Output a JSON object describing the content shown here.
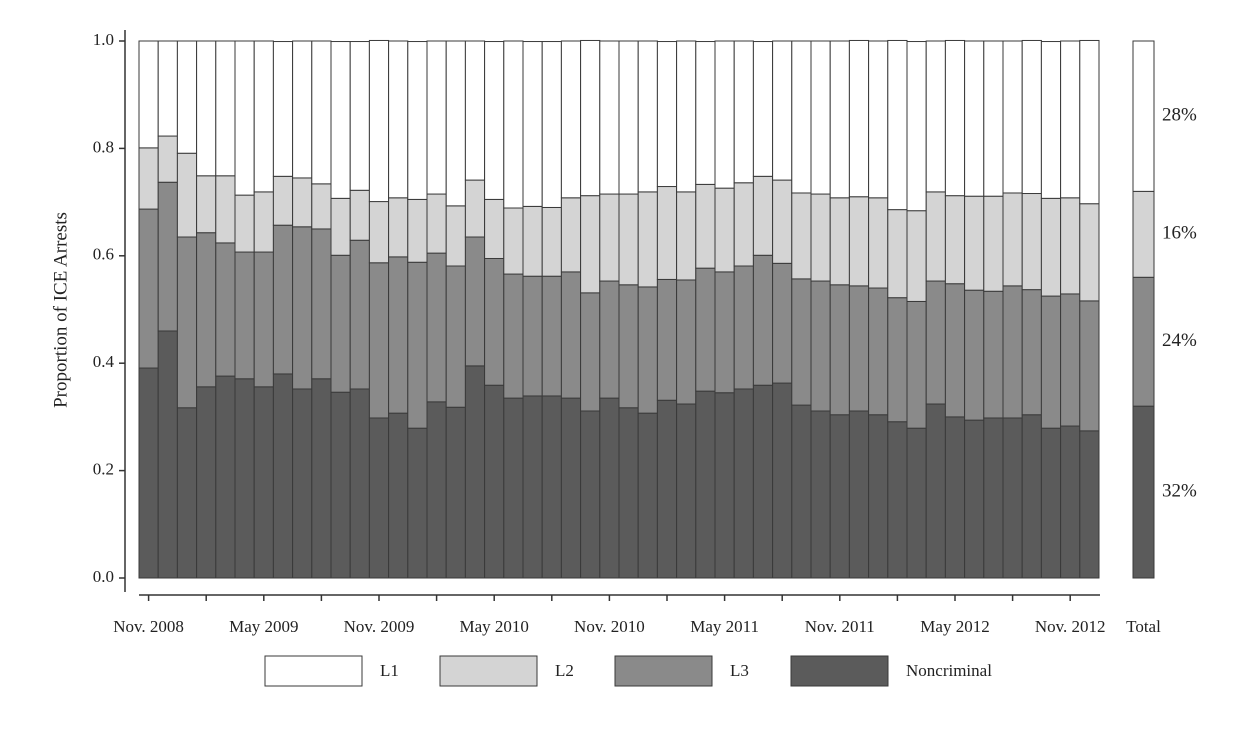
{
  "chart_data": {
    "type": "stacked_bar",
    "y_label": "Proportion of ICE Arrests",
    "categories": [
      "Nov. 2008",
      null,
      null,
      null,
      null,
      null,
      "May 2009",
      null,
      null,
      null,
      null,
      null,
      "Nov. 2009",
      null,
      null,
      null,
      null,
      null,
      "May 2010",
      null,
      null,
      null,
      null,
      null,
      "Nov. 2010",
      null,
      null,
      null,
      null,
      null,
      "May 2011",
      null,
      null,
      null,
      null,
      null,
      "Nov. 2011",
      null,
      null,
      null,
      null,
      null,
      "May 2012",
      null,
      null,
      null,
      null,
      null,
      "Nov. 2012",
      null
    ],
    "series": [
      {
        "name": "L1",
        "color": "#ffffff",
        "values": [
          0.199,
          0.177,
          0.209,
          0.251,
          0.251,
          0.287,
          0.281,
          0.251,
          0.255,
          0.266,
          0.292,
          0.277,
          0.3,
          0.292,
          0.294,
          0.285,
          0.307,
          0.259,
          0.294,
          0.311,
          0.307,
          0.309,
          0.292,
          0.289,
          0.285,
          0.285,
          0.281,
          0.27,
          0.281,
          0.266,
          0.274,
          0.264,
          0.251,
          0.259,
          0.283,
          0.285,
          0.292,
          0.291,
          0.292,
          0.315,
          0.315,
          0.281,
          0.289,
          0.289,
          0.289,
          0.283,
          0.285,
          0.292,
          0.292,
          0.304
        ]
      },
      {
        "name": "L2",
        "color": "#d4d4d4",
        "values": [
          0.114,
          0.086,
          0.156,
          0.106,
          0.125,
          0.106,
          0.112,
          0.091,
          0.091,
          0.084,
          0.106,
          0.093,
          0.114,
          0.11,
          0.117,
          0.11,
          0.112,
          0.106,
          0.11,
          0.123,
          0.13,
          0.128,
          0.138,
          0.181,
          0.162,
          0.169,
          0.177,
          0.173,
          0.164,
          0.156,
          0.156,
          0.155,
          0.147,
          0.155,
          0.16,
          0.162,
          0.162,
          0.166,
          0.168,
          0.164,
          0.169,
          0.166,
          0.164,
          0.175,
          0.177,
          0.173,
          0.179,
          0.182,
          0.179,
          0.181
        ]
      },
      {
        "name": "L3",
        "color": "#8a8a8a",
        "values": [
          0.296,
          0.277,
          0.318,
          0.287,
          0.248,
          0.236,
          0.251,
          0.277,
          0.302,
          0.279,
          0.255,
          0.277,
          0.289,
          0.291,
          0.309,
          0.277,
          0.263,
          0.24,
          0.236,
          0.231,
          0.223,
          0.223,
          0.235,
          0.22,
          0.218,
          0.229,
          0.235,
          0.225,
          0.231,
          0.229,
          0.225,
          0.229,
          0.242,
          0.223,
          0.235,
          0.242,
          0.242,
          0.233,
          0.236,
          0.231,
          0.236,
          0.229,
          0.248,
          0.242,
          0.236,
          0.246,
          0.233,
          0.246,
          0.246,
          0.242
        ]
      },
      {
        "name": "Noncriminal",
        "color": "#5b5b5b",
        "values": [
          0.391,
          0.46,
          0.317,
          0.356,
          0.376,
          0.371,
          0.356,
          0.38,
          0.352,
          0.371,
          0.346,
          0.352,
          0.298,
          0.307,
          0.279,
          0.328,
          0.318,
          0.395,
          0.359,
          0.335,
          0.339,
          0.339,
          0.335,
          0.311,
          0.335,
          0.317,
          0.307,
          0.331,
          0.324,
          0.348,
          0.345,
          0.352,
          0.359,
          0.363,
          0.322,
          0.311,
          0.304,
          0.311,
          0.304,
          0.291,
          0.279,
          0.324,
          0.3,
          0.294,
          0.298,
          0.298,
          0.304,
          0.279,
          0.283,
          0.274
        ]
      }
    ],
    "total": {
      "label": "Total",
      "values": [
        0.28,
        0.16,
        0.24,
        0.32
      ],
      "value_labels": [
        "28%",
        "16%",
        "24%",
        "32%"
      ]
    },
    "ylim": [
      0,
      1
    ],
    "yticks": [
      {
        "value": 0,
        "label": "0.0"
      },
      0.2,
      0.4,
      0.6,
      0.8,
      {
        "value": 1,
        "label": "1.0"
      }
    ],
    "legend": "bottom"
  }
}
